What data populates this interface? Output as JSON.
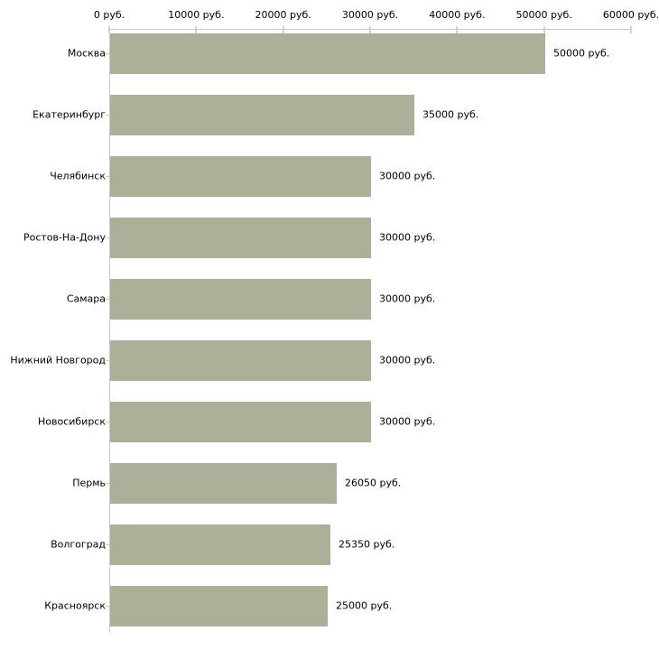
{
  "chart_data": {
    "type": "bar",
    "orientation": "horizontal",
    "title": "",
    "xlabel": "",
    "ylabel": "",
    "categories": [
      "Москва",
      "Екатеринбург",
      "Челябинск",
      "Ростов-На-Дону",
      "Самара",
      "Нижний Новгород",
      "Новосибирск",
      "Пермь",
      "Волгоград",
      "Красноярск"
    ],
    "values": [
      50000,
      35000,
      30000,
      30000,
      30000,
      30000,
      30000,
      26050,
      25350,
      25000
    ],
    "value_labels": [
      "50000 руб.",
      "35000 руб.",
      "30000 руб.",
      "30000 руб.",
      "30000 руб.",
      "30000 руб.",
      "30000 руб.",
      "26050 руб.",
      "25350 руб.",
      "25000 руб."
    ],
    "x_axis": {
      "position": "top",
      "min": 0,
      "max": 60000,
      "tick_values": [
        0,
        10000,
        20000,
        30000,
        40000,
        50000,
        60000
      ],
      "tick_labels": [
        "0 руб.",
        "10000 руб.",
        "20000 руб.",
        "30000 руб.",
        "40000 руб.",
        "50000 руб.",
        "60000 руб."
      ]
    },
    "legend": "none",
    "grid": "off",
    "colors": {
      "bar_fill": "#abb198",
      "axis_line": "#c9c9c9",
      "axis_tick": "#d6d8b0",
      "category_tick": "#d0ccb4",
      "text": "#000000",
      "background": "#ffffff"
    }
  }
}
